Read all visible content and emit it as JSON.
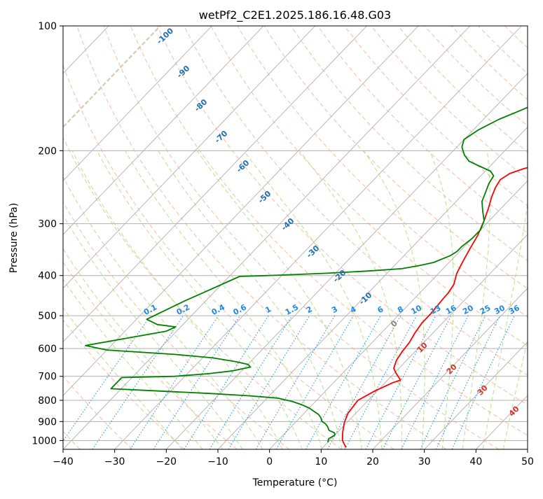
{
  "chart_data": {
    "type": "line",
    "subtype": "skew-T log-P diagram",
    "title": "wetPf2_C2E1.2025.186.16.48.G03",
    "xlabel": "Temperature (°C)",
    "ylabel": "Pressure (hPa)",
    "xlim": [
      -40,
      50
    ],
    "ylim": [
      1050,
      100
    ],
    "y_scale": "log",
    "grid": true,
    "x_ticks": [
      "−40",
      "−30",
      "−20",
      "−10",
      "0",
      "10",
      "20",
      "30",
      "40",
      "50"
    ],
    "y_ticks": [
      "100",
      "200",
      "300",
      "400",
      "500",
      "600",
      "700",
      "800",
      "900",
      "1000"
    ],
    "series": [
      {
        "role": "temperature",
        "color": "#ff0000",
        "points": [
          [
            14.5,
            1040
          ],
          [
            12.5,
            1000
          ],
          [
            11,
            955
          ],
          [
            9.5,
            905
          ],
          [
            8.5,
            860
          ],
          [
            8,
            800
          ],
          [
            9.5,
            760
          ],
          [
            11.5,
            725
          ],
          [
            12.5,
            715
          ],
          [
            10.5,
            690
          ],
          [
            9,
            670
          ],
          [
            8,
            640
          ],
          [
            7.5,
            610
          ],
          [
            7.2,
            580
          ],
          [
            6.5,
            550
          ],
          [
            6,
            520
          ],
          [
            6,
            495
          ],
          [
            5.8,
            475
          ],
          [
            5.6,
            455
          ],
          [
            5.5,
            440
          ],
          [
            5,
            420
          ],
          [
            3.5,
            395
          ],
          [
            2.5,
            370
          ],
          [
            1.5,
            345
          ],
          [
            0.5,
            320
          ],
          [
            -1,
            295
          ],
          [
            -2.5,
            275
          ],
          [
            -4,
            258
          ],
          [
            -5,
            245
          ],
          [
            -5.5,
            235
          ],
          [
            -4.8,
            227
          ],
          [
            -3,
            221
          ],
          [
            0,
            214
          ],
          [
            2.5,
            206
          ],
          [
            5,
            198
          ],
          [
            7,
            190
          ],
          [
            8.5,
            182
          ],
          [
            9,
            175
          ],
          [
            10,
            163
          ],
          [
            11,
            150
          ],
          [
            13.5,
            138
          ],
          [
            15.5,
            130
          ],
          [
            16.5,
            125
          ],
          [
            18,
            115
          ],
          [
            21,
            107
          ],
          [
            23,
            100
          ]
        ]
      },
      {
        "role": "dewpoint",
        "color": "#008000",
        "points": [
          [
            10,
            1010
          ],
          [
            9.5,
            990
          ],
          [
            10,
            970
          ],
          [
            9.5,
            958
          ],
          [
            8,
            945
          ],
          [
            7,
            925
          ],
          [
            6,
            910
          ],
          [
            5,
            900
          ],
          [
            4,
            880
          ],
          [
            3,
            865
          ],
          [
            1.5,
            850
          ],
          [
            0,
            835
          ],
          [
            -2,
            820
          ],
          [
            -4.5,
            805
          ],
          [
            -8,
            790
          ],
          [
            -14,
            780
          ],
          [
            -22,
            770
          ],
          [
            -32,
            760
          ],
          [
            -42,
            750
          ],
          [
            -42,
            705
          ],
          [
            -32,
            700
          ],
          [
            -26,
            690
          ],
          [
            -22,
            680
          ],
          [
            -19,
            665
          ],
          [
            -20,
            655
          ],
          [
            -23,
            645
          ],
          [
            -28,
            632
          ],
          [
            -36,
            620
          ],
          [
            -50,
            605
          ],
          [
            -55,
            590
          ],
          [
            -42,
            545
          ],
          [
            -41,
            532
          ],
          [
            -45,
            525
          ],
          [
            -48,
            510
          ],
          [
            -44,
            460
          ],
          [
            -42,
            440
          ],
          [
            -38,
            402
          ],
          [
            -30,
            399
          ],
          [
            -22,
            395
          ],
          [
            -14,
            390
          ],
          [
            -8,
            385
          ],
          [
            -5,
            378
          ],
          [
            -3,
            372
          ],
          [
            -2,
            365
          ],
          [
            -1,
            358
          ],
          [
            -0.5,
            350
          ],
          [
            -0.5,
            340
          ],
          [
            0,
            325
          ],
          [
            0,
            310
          ],
          [
            -1,
            295
          ],
          [
            -3,
            280
          ],
          [
            -5,
            265
          ],
          [
            -6,
            252
          ],
          [
            -7,
            240
          ],
          [
            -7.5,
            230
          ],
          [
            -9,
            224
          ],
          [
            -12,
            218
          ],
          [
            -15,
            212
          ],
          [
            -17,
            205
          ],
          [
            -19,
            196
          ],
          [
            -20,
            188
          ],
          [
            -19,
            178
          ],
          [
            -17,
            168
          ],
          [
            -14.5,
            160
          ],
          [
            -13,
            155
          ],
          [
            -12.5,
            148
          ],
          [
            -12.5,
            140
          ],
          [
            -11.5,
            135
          ],
          [
            -10,
            130
          ],
          [
            -8,
            125
          ],
          [
            -6,
            120
          ],
          [
            -4,
            116
          ],
          [
            -2.5,
            110
          ],
          [
            -2,
            105
          ],
          [
            -1.5,
            100
          ]
        ]
      }
    ],
    "dry_adiabat_labels": [
      "-100",
      "-90",
      "-80",
      "-70",
      "-60",
      "-50",
      "-40",
      "-30",
      "-20",
      "-10"
    ],
    "mixing_ratio_labels": [
      "0.1",
      "0.2",
      "0.4",
      "0.6",
      "1",
      "1.5",
      "2",
      "3",
      "4",
      "6",
      "8",
      "10",
      "13",
      "16",
      "20",
      "25",
      "30",
      "36"
    ],
    "moist_adiabat_labels": [
      "0",
      "10",
      "20",
      "30",
      "40"
    ],
    "colors": {
      "temperature": "#ff0000",
      "dewpoint": "#008000",
      "dry_adiabat": "#f4a582",
      "moist_adiabat": "#a6d96a",
      "mixing_ratio": "#1e88e5",
      "isotherm": "#b0b0b0",
      "adiabat_label": "#1f6fb0",
      "moist_label": "#d73027",
      "zero_label": "#808080",
      "isotherm_zero": "#d8c8b0"
    }
  }
}
